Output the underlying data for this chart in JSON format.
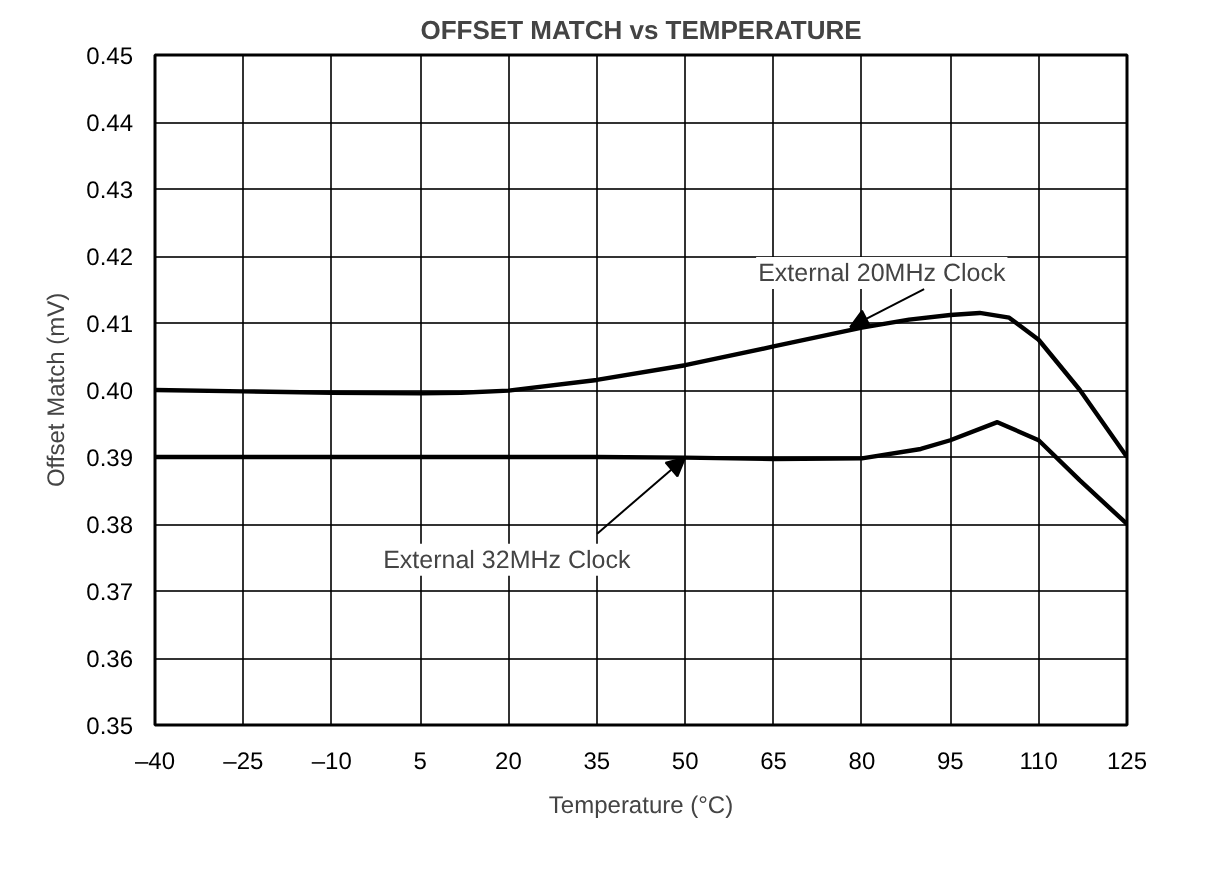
{
  "chart_data": {
    "type": "line",
    "title": "OFFSET MATCH vs TEMPERATURE",
    "xlabel": "Temperature (°C)",
    "ylabel": "Offset Match (mV)",
    "xlim": [
      -40,
      125
    ],
    "ylim": [
      0.35,
      0.45
    ],
    "xticks": [
      {
        "value": -40,
        "label": "–40"
      },
      {
        "value": -25,
        "label": "–25"
      },
      {
        "value": -10,
        "label": "–10"
      },
      5,
      20,
      35,
      50,
      65,
      80,
      95,
      110,
      125
    ],
    "yticks": [
      0.35,
      0.36,
      0.37,
      0.38,
      0.39,
      {
        "value": 0.4,
        "label": "0.40"
      },
      0.41,
      0.42,
      0.43,
      0.44,
      0.45
    ],
    "grid": true,
    "marker": "none",
    "line_style": "solid",
    "series": [
      {
        "color": "#000000",
        "x": [
          -40,
          -25,
          -10,
          5,
          12,
          20,
          35,
          50,
          65,
          80,
          88,
          95,
          100,
          105,
          110,
          117,
          125
        ],
        "values": [
          0.4,
          0.3998,
          0.3996,
          0.3995,
          0.3996,
          0.3999,
          0.4015,
          0.4037,
          0.4065,
          0.4093,
          0.4105,
          0.4112,
          0.4115,
          0.4108,
          0.4075,
          0.4,
          0.39
        ]
      },
      {
        "color": "#000000",
        "x": [
          -40,
          -25,
          -10,
          5,
          20,
          35,
          50,
          65,
          80,
          90,
          95,
          103,
          110,
          117,
          125
        ],
        "values": [
          0.39,
          0.39,
          0.39,
          0.39,
          0.39,
          0.39,
          0.3899,
          0.3897,
          0.3898,
          0.3912,
          0.3925,
          0.3952,
          0.3925,
          0.3865,
          0.38
        ]
      }
    ],
    "annotations": [
      {
        "text": "External 20MHz Clock",
        "x": 78,
        "y": 0.4094
      },
      {
        "text": "External 32MHz Clock",
        "x": 50,
        "y": 0.3899
      }
    ]
  }
}
